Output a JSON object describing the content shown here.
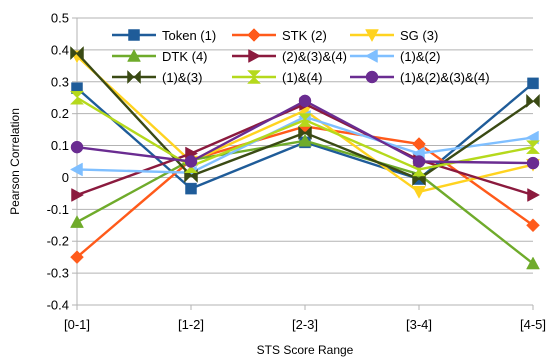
{
  "chart_data": {
    "type": "line",
    "title": "",
    "xlabel": "STS Score Range",
    "ylabel": "Pearson Correlation",
    "categories": [
      "[0-1]",
      "[1-2]",
      "[2-3]",
      "[3-4]",
      "[4-5]"
    ],
    "ylim": [
      -0.4,
      0.5
    ],
    "yticks": [
      -0.4,
      -0.3,
      -0.2,
      -0.1,
      0,
      0.1,
      0.2,
      0.3,
      0.4,
      0.5
    ],
    "ytick_labels": [
      "-0.4",
      "-0.3",
      "-0.2",
      "-0.1",
      "0",
      "0.1",
      "0.2",
      "0.3",
      "0.4",
      "0.5"
    ],
    "grid": true,
    "legend_position": "top",
    "series": [
      {
        "name": "Token (1)",
        "color": "#1f5c99",
        "marker": "square",
        "values": [
          0.28,
          -0.035,
          0.11,
          -0.005,
          0.295
        ]
      },
      {
        "name": "STK (2)",
        "color": "#ff5a1a",
        "marker": "diamond",
        "values": [
          -0.25,
          0.055,
          0.16,
          0.105,
          -0.15
        ]
      },
      {
        "name": "SG (3)",
        "color": "#ffd320",
        "marker": "triangle-down",
        "values": [
          0.38,
          0.05,
          0.21,
          -0.045,
          0.04
        ]
      },
      {
        "name": "DTK (4)",
        "color": "#6fab2b",
        "marker": "triangle-up",
        "values": [
          -0.14,
          0.055,
          0.115,
          0.01,
          -0.27
        ]
      },
      {
        "name": "(2)&(3)&(4)",
        "color": "#8b1a3e",
        "marker": "triangle-right",
        "values": [
          -0.055,
          0.075,
          0.23,
          0.055,
          -0.055
        ]
      },
      {
        "name": "(1)&(2)",
        "color": "#7fbfff",
        "marker": "triangle-left",
        "values": [
          0.025,
          0.015,
          0.19,
          0.075,
          0.125
        ]
      },
      {
        "name": "(1)&(3)",
        "color": "#3a4a14",
        "marker": "bowtie",
        "values": [
          0.39,
          0.005,
          0.14,
          -0.005,
          0.24
        ]
      },
      {
        "name": "(1)&(4)",
        "color": "#b5d91c",
        "marker": "hourglass",
        "values": [
          0.25,
          0.035,
          0.18,
          0.025,
          0.095
        ]
      },
      {
        "name": "(1)&(2)&(3)&(4)",
        "color": "#6a2c91",
        "marker": "circle",
        "values": [
          0.095,
          0.05,
          0.24,
          0.05,
          0.045
        ]
      }
    ]
  }
}
